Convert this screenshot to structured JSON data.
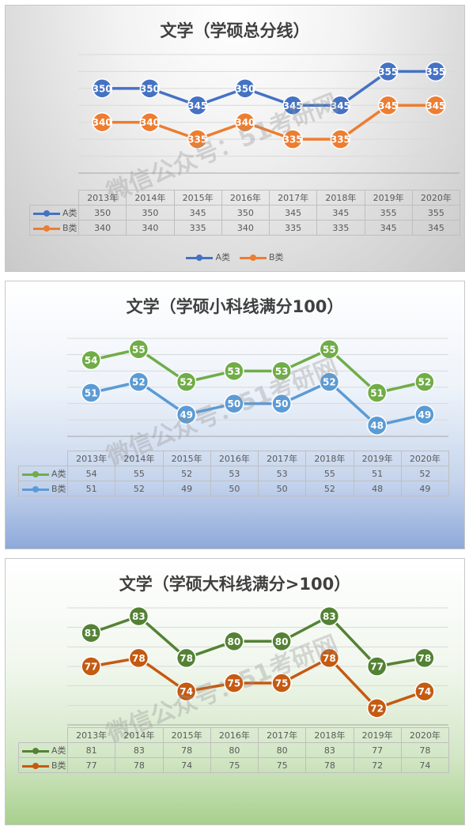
{
  "watermark": "微信公众号：51考研网",
  "chart_data": [
    {
      "type": "line",
      "title": "文学（学硕总分线）",
      "categories": [
        "2013年",
        "2014年",
        "2015年",
        "2016年",
        "2017年",
        "2018年",
        "2019年",
        "2020年"
      ],
      "series": [
        {
          "name": "A类",
          "color": "#4472c4",
          "values": [
            350,
            350,
            345,
            350,
            345,
            345,
            355,
            355
          ]
        },
        {
          "name": "B类",
          "color": "#ed7d31",
          "values": [
            340,
            340,
            335,
            340,
            335,
            335,
            345,
            345
          ]
        }
      ],
      "ylim": [
        325,
        360
      ],
      "grid": true,
      "legend": "bottom"
    },
    {
      "type": "line",
      "title": "文学（学硕小科线满分100）",
      "categories": [
        "2013年",
        "2014年",
        "2015年",
        "2016年",
        "2017年",
        "2018年",
        "2019年",
        "2020年"
      ],
      "series": [
        {
          "name": "A类",
          "color": "#70ad47",
          "values": [
            54,
            55,
            52,
            53,
            53,
            55,
            51,
            52
          ]
        },
        {
          "name": "B类",
          "color": "#5b9bd5",
          "values": [
            51,
            52,
            49,
            50,
            50,
            52,
            48,
            49
          ]
        }
      ],
      "ylim": [
        47,
        56
      ],
      "grid": true,
      "legend": "table"
    },
    {
      "type": "line",
      "title": "文学（学硕大科线满分>100）",
      "categories": [
        "2013年",
        "2014年",
        "2015年",
        "2016年",
        "2017年",
        "2018年",
        "2019年",
        "2020年"
      ],
      "series": [
        {
          "name": "A类",
          "color": "#548235",
          "values": [
            81,
            83,
            78,
            80,
            80,
            83,
            77,
            78
          ]
        },
        {
          "name": "B类",
          "color": "#c55a11",
          "values": [
            77,
            78,
            74,
            75,
            75,
            78,
            72,
            74
          ]
        }
      ],
      "ylim": [
        70,
        84
      ],
      "grid": true,
      "legend": "table"
    }
  ]
}
